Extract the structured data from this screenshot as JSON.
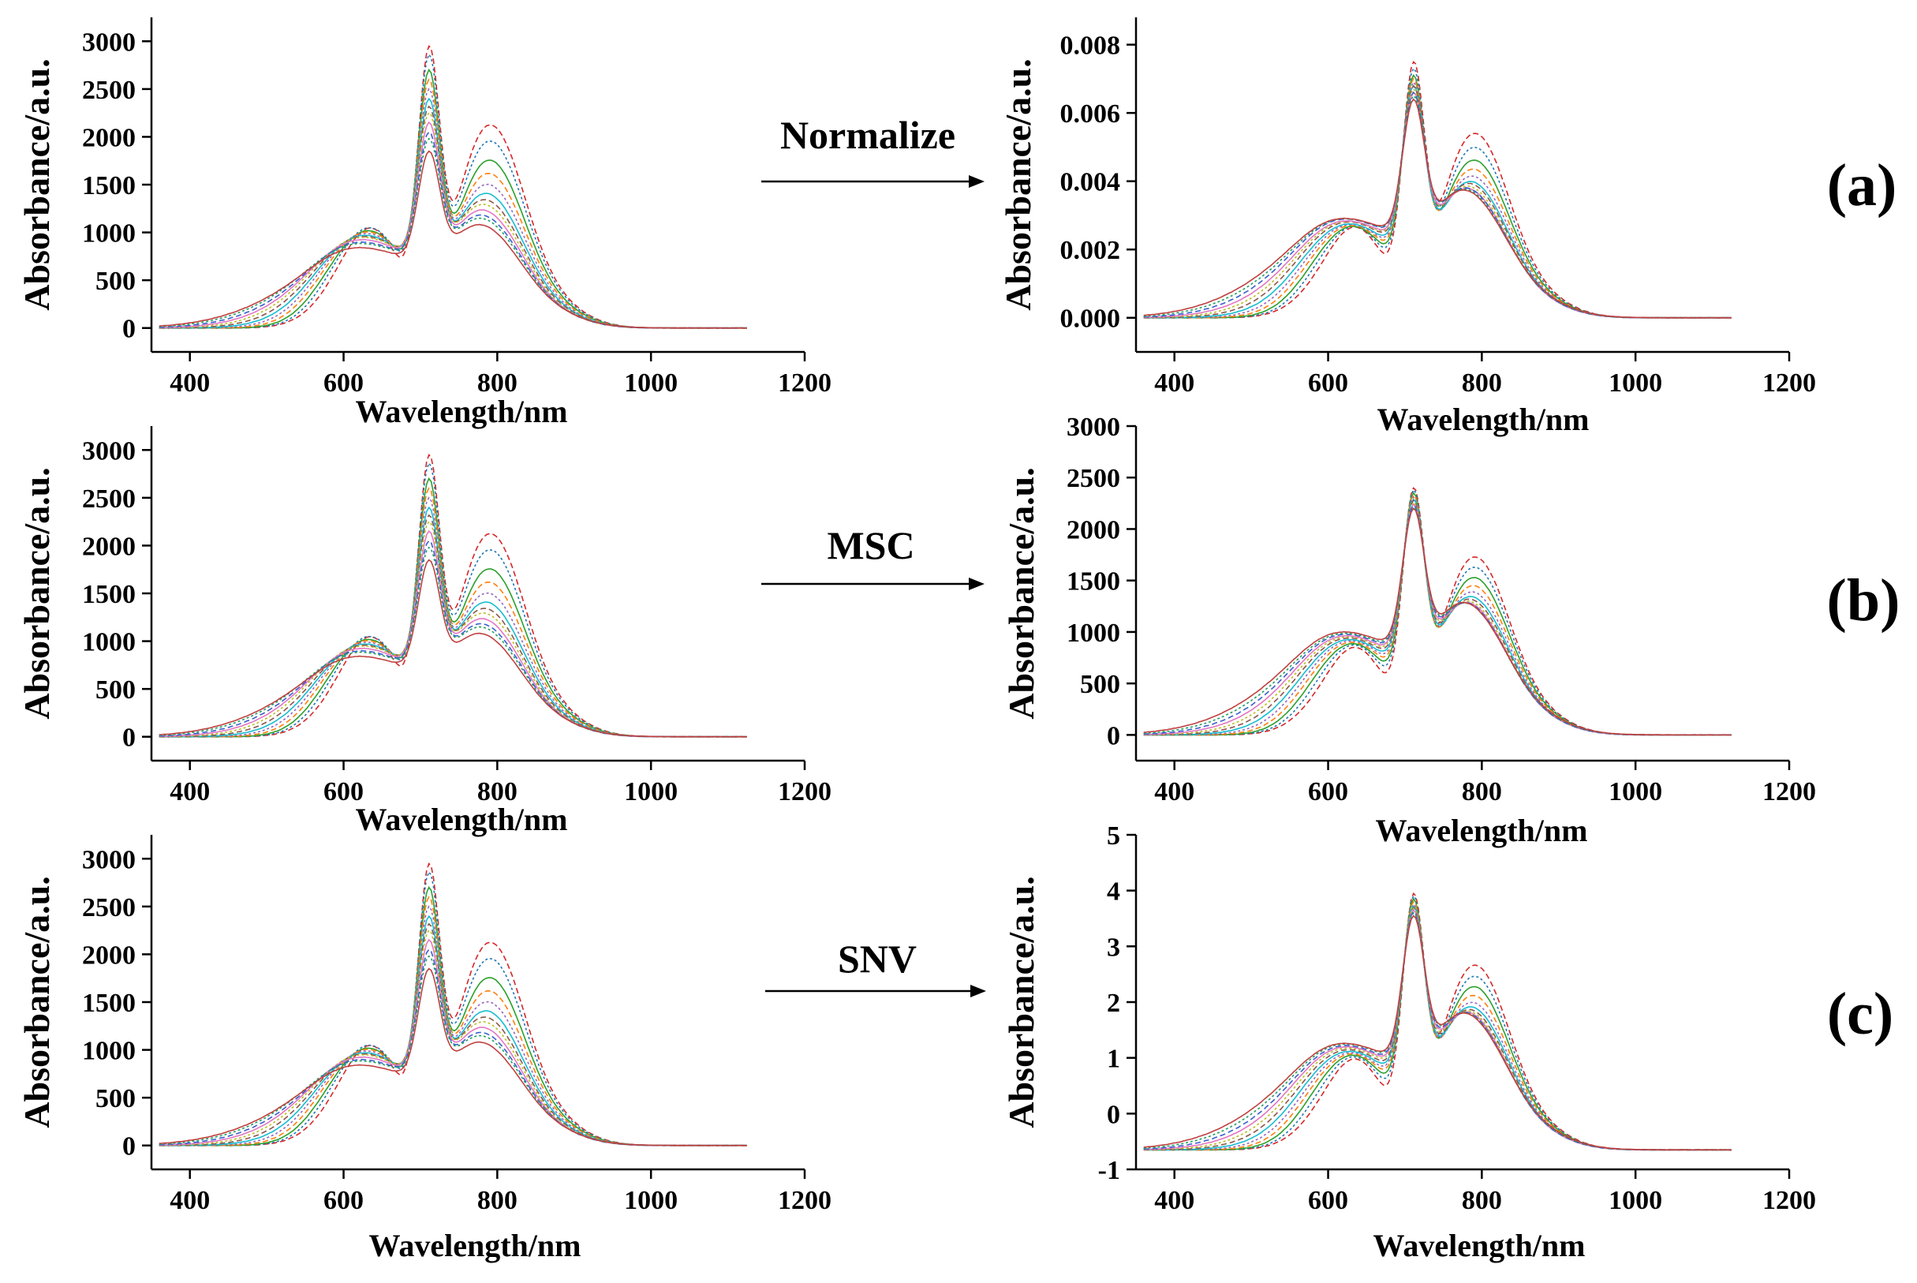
{
  "rows": [
    {
      "panel_label": "(a)",
      "arrow_label": "Normalize",
      "panels": [
        {
          "side": "left",
          "chart_data": {
            "type": "line",
            "xlabel": "Wavelength/nm",
            "ylabel": "Absorbance/a.u.",
            "xlim": [
              350,
              1200
            ],
            "ylim": [
              -250,
              3250
            ],
            "xticks": [
              400,
              600,
              800,
              1000,
              1200
            ],
            "yticks": [
              0,
              500,
              1000,
              1500,
              2000,
              2500,
              3000
            ],
            "ytick_labels": [
              "0",
              "500",
              "1000",
              "1500",
              "2000",
              "2500",
              "3000"
            ],
            "x_range": [
              360,
              1125
            ],
            "peak_positions_nm": [
              640,
              711,
              806
            ],
            "peak_maxima": [
              2950,
              2860,
              2700,
              2600,
              2500,
              2400,
              2320,
              2250,
              2150,
              2050,
              1980,
              1850
            ],
            "n_series": 12
          }
        },
        {
          "side": "right",
          "chart_data": {
            "type": "line",
            "xlabel": "Wavelength/nm",
            "ylabel": "Absorbance/a.u.",
            "xlim": [
              350,
              1200
            ],
            "ylim": [
              -0.001,
              0.0088
            ],
            "xticks": [
              400,
              600,
              800,
              1000,
              1200
            ],
            "yticks": [
              0.0,
              0.002,
              0.004,
              0.006,
              0.008
            ],
            "ytick_labels": [
              "0.000",
              "0.002",
              "0.004",
              "0.006",
              "0.008"
            ],
            "x_range": [
              360,
              1125
            ],
            "peak_positions_nm": [
              640,
              711,
              806
            ],
            "peak_maxima": [
              0.0075,
              0.0073,
              0.0071,
              0.007,
              0.0069,
              0.0068,
              0.0068,
              0.0067,
              0.0066,
              0.0066,
              0.0065,
              0.0064
            ],
            "n_series": 12
          }
        }
      ]
    },
    {
      "panel_label": "(b)",
      "arrow_label": "MSC",
      "panels": [
        {
          "side": "left",
          "chart_data": {
            "type": "line",
            "xlabel": "Wavelength/nm",
            "ylabel": "Absorbance/a.u.",
            "xlim": [
              350,
              1200
            ],
            "ylim": [
              -250,
              3250
            ],
            "xticks": [
              400,
              600,
              800,
              1000,
              1200
            ],
            "yticks": [
              0,
              500,
              1000,
              1500,
              2000,
              2500,
              3000
            ],
            "ytick_labels": [
              "0",
              "500",
              "1000",
              "1500",
              "2000",
              "2500",
              "3000"
            ],
            "x_range": [
              360,
              1125
            ],
            "peak_positions_nm": [
              640,
              711,
              806
            ],
            "peak_maxima": [
              2950,
              2860,
              2700,
              2600,
              2500,
              2400,
              2320,
              2250,
              2150,
              2050,
              1980,
              1850
            ],
            "n_series": 12
          }
        },
        {
          "side": "right",
          "chart_data": {
            "type": "line",
            "xlabel": "Wavelength/nm",
            "ylabel": "Absorbance/a.u.",
            "xlim": [
              350,
              1200
            ],
            "ylim": [
              -250,
              3000
            ],
            "xticks": [
              400,
              600,
              800,
              1000,
              1200
            ],
            "yticks": [
              0,
              500,
              1000,
              1500,
              2000,
              2500,
              3000
            ],
            "ytick_labels": [
              "0",
              "500",
              "1000",
              "1500",
              "2000",
              "2500",
              "3000"
            ],
            "x_range": [
              360,
              1125
            ],
            "peak_positions_nm": [
              640,
              711,
              806
            ],
            "peak_maxima": [
              2400,
              2380,
              2350,
              2330,
              2310,
              2290,
              2280,
              2260,
              2240,
              2230,
              2210,
              2200
            ],
            "n_series": 12
          }
        }
      ]
    },
    {
      "panel_label": "(c)",
      "arrow_label": "SNV",
      "panels": [
        {
          "side": "left",
          "chart_data": {
            "type": "line",
            "xlabel": "Wavelength/nm",
            "ylabel": "Absorbance/a.u.",
            "xlim": [
              350,
              1200
            ],
            "ylim": [
              -250,
              3250
            ],
            "xticks": [
              400,
              600,
              800,
              1000,
              1200
            ],
            "yticks": [
              0,
              500,
              1000,
              1500,
              2000,
              2500,
              3000
            ],
            "ytick_labels": [
              "0",
              "500",
              "1000",
              "1500",
              "2000",
              "2500",
              "3000"
            ],
            "x_range": [
              360,
              1125
            ],
            "peak_positions_nm": [
              640,
              711,
              806
            ],
            "peak_maxima": [
              2950,
              2860,
              2700,
              2600,
              2500,
              2400,
              2320,
              2250,
              2150,
              2050,
              1980,
              1850
            ],
            "n_series": 12
          }
        },
        {
          "side": "right",
          "chart_data": {
            "type": "line",
            "xlabel": "Wavelength/nm",
            "ylabel": "Absorbance/a.u.",
            "xlim": [
              350,
              1200
            ],
            "ylim": [
              -1,
              5
            ],
            "xticks": [
              400,
              600,
              800,
              1000,
              1200
            ],
            "yticks": [
              -1,
              0,
              1,
              2,
              3,
              4,
              5
            ],
            "ytick_labels": [
              "-1",
              "0",
              "1",
              "2",
              "3",
              "4",
              "5"
            ],
            "x_range": [
              360,
              1125
            ],
            "baseline_offset": -0.65,
            "peak_positions_nm": [
              640,
              711,
              806
            ],
            "peak_maxima": [
              3.95,
              3.9,
              3.85,
              3.8,
              3.75,
              3.72,
              3.7,
              3.68,
              3.65,
              3.62,
              3.6,
              3.55
            ],
            "n_series": 12
          }
        }
      ]
    }
  ],
  "series_colors": [
    "#d62728",
    "#1f77b4",
    "#2ca02c",
    "#ff7f0e",
    "#9467bd",
    "#17becf",
    "#8c564b",
    "#bcbd22",
    "#e377c2",
    "#3a5fcd",
    "#20a060",
    "#c04040"
  ]
}
